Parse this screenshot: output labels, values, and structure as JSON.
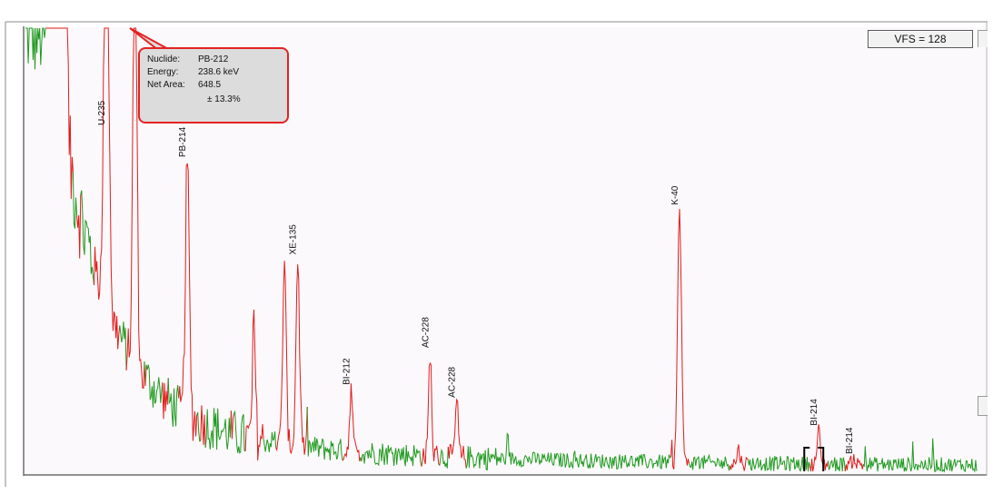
{
  "readout": {
    "vfs": "VFS = 128"
  },
  "tooltip": {
    "nuclide_key": "Nuclide:",
    "nuclide_value": "PB-212",
    "energy_key": "Energy:",
    "energy_value": "238.6 keV",
    "net_area_key": "Net Area:",
    "net_area_value": "648.5",
    "uncertainty": "± 13.3%"
  },
  "colors": {
    "roi": "#e31b1b",
    "background_spectrum": "#1f9a1f",
    "plot_background": "#fbf9fb",
    "cursor": "#000000"
  },
  "chart_data": {
    "type": "line",
    "title": "",
    "xlabel": "",
    "ylabel": "",
    "vertical_full_scale": 128,
    "grid": false,
    "legend": "none",
    "x_units": "channel",
    "xlim": [
      0,
      1000
    ],
    "ylim": [
      0,
      128
    ],
    "peaks": [
      {
        "label": "",
        "x": 30,
        "height": 127,
        "width": 2.5
      },
      {
        "label": "",
        "x": 40,
        "height": 127,
        "width": 2.5
      },
      {
        "label": "U-235",
        "x": 85,
        "height": 127,
        "width": 2.5
      },
      {
        "label": "",
        "x": 115,
        "height": 127,
        "width": 2.0
      },
      {
        "label": "PB-214",
        "x": 170,
        "height": 73,
        "width": 2.0
      },
      {
        "label": "",
        "x": 240,
        "height": 33,
        "width": 1.5
      },
      {
        "label": "",
        "x": 272,
        "height": 52,
        "width": 1.8
      },
      {
        "label": "XE-135",
        "x": 286,
        "height": 54,
        "width": 1.8
      },
      {
        "label": "BI-212",
        "x": 342,
        "height": 18,
        "width": 1.5
      },
      {
        "label": "AC-228",
        "x": 425,
        "height": 30,
        "width": 1.5
      },
      {
        "label": "AC-228",
        "x": 453,
        "height": 16,
        "width": 1.5
      },
      {
        "label": "K-40",
        "x": 687,
        "height": 73,
        "width": 2.0
      },
      {
        "label": "",
        "x": 749,
        "height": 4,
        "width": 1.5
      },
      {
        "label": "BI-214",
        "x": 833,
        "height": 10,
        "width": 1.5
      },
      {
        "label": "BI-214",
        "x": 870,
        "height": 2,
        "width": 1.5
      }
    ]
  }
}
